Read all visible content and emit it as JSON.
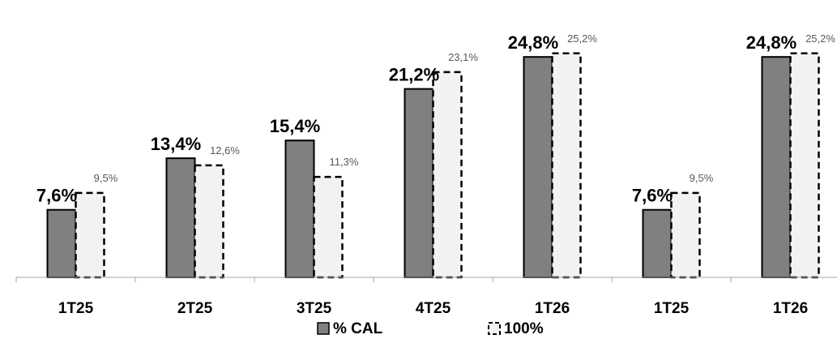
{
  "chart_data": {
    "type": "bar",
    "title": "",
    "xlabel": "",
    "ylabel": "",
    "ylim": [
      0,
      27
    ],
    "grid": false,
    "legend": "bottom",
    "categories": [
      "1T25",
      "2T25",
      "3T25",
      "4T25",
      "1T26",
      "1T25",
      "1T26"
    ],
    "series": [
      {
        "name": "% CAL",
        "values": [
          7.6,
          13.4,
          15.4,
          21.2,
          24.8,
          7.6,
          24.8
        ],
        "labels": [
          "7,6%",
          "13,4%",
          "15,4%",
          "21,2%",
          "24,8%",
          "7,6%",
          "24,8%"
        ],
        "color": "#808080"
      },
      {
        "name": "100%",
        "values": [
          9.5,
          12.6,
          11.3,
          23.1,
          25.2,
          9.5,
          25.2
        ],
        "labels": [
          "9,5%",
          "12,6%",
          "11,3%",
          "23,1%",
          "25,2%",
          "9,5%",
          "25,2%"
        ],
        "color": "#f2f2f2"
      }
    ]
  }
}
